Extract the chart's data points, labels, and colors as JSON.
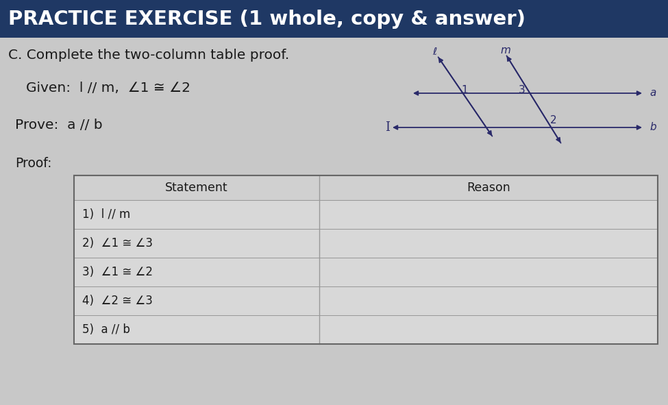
{
  "title": "PRACTICE EXERCISE (1 whole, copy & answer)",
  "subtitle": "C. Complete the two-column table proof.",
  "given_text": "Given:  l // m,  ∠1 ≅ ∠2",
  "prove_text": "Prove:  a // b",
  "proof_label": "Proof:",
  "col1_header": "Statement",
  "col2_header": "Reason",
  "rows": [
    [
      "1)  l // m",
      ""
    ],
    [
      "2)  ∠1 ≅ ∠3",
      ""
    ],
    [
      "3)  ∠1 ≅ ∠2",
      ""
    ],
    [
      "4)  ∠2 ≅ ∠3",
      ""
    ],
    [
      "5)  a // b",
      ""
    ]
  ],
  "bg_color": "#c8c8c8",
  "table_bg": "#e0e0e0",
  "title_color": "#1f3864",
  "text_color": "#1a1a1a",
  "border_color": "#999999",
  "fig_width": 9.75,
  "fig_height": 5.91,
  "title_bar_color": "#1f3864"
}
